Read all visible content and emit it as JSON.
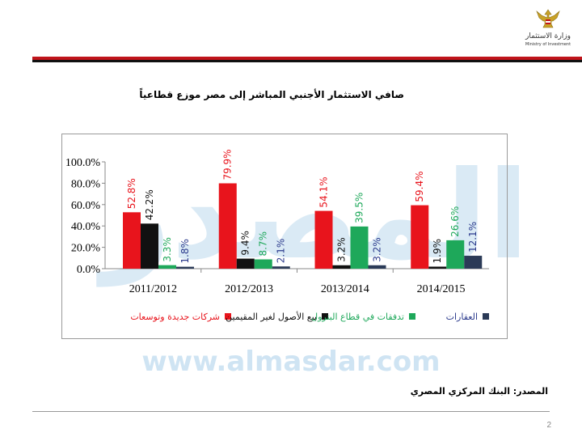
{
  "header": {
    "ministry_name_ar": "وزارة الاستثمار",
    "ministry_name_en": "Ministry of Investment"
  },
  "slide": {
    "title": "صافي الاستثمار الأجنبي المباشر إلى مصر موزع قطاعياً",
    "source": "المصدر: البنك المركزي المصري",
    "page_number": "2"
  },
  "watermark": {
    "logo_text": "المصدر",
    "url_text": "www.almasdar.com"
  },
  "colors": {
    "red": "#e8141c",
    "black": "#111111",
    "green": "#1ea85a",
    "navy": "#2b3a57",
    "band_red": "#c0141b",
    "watermark": "#bcd9ee"
  },
  "chart_data": {
    "type": "bar",
    "categories": [
      "2011/2012",
      "2012/2013",
      "2013/2014",
      "2014/2015"
    ],
    "series": [
      {
        "name": "شركات جديدة وتوسعات",
        "color": "#e8141c",
        "label_color": "#e8141c",
        "values": [
          52.8,
          79.9,
          54.1,
          59.4
        ],
        "labels": [
          "52.8%",
          "79.9%",
          "54.1%",
          "59.4%"
        ]
      },
      {
        "name": "بيع الأصول لغير المقيمين",
        "color": "#111111",
        "label_color": "#111111",
        "values": [
          42.2,
          9.4,
          3.2,
          1.9
        ],
        "labels": [
          "42.2%",
          "9.4%",
          "3.2%",
          "1.9%"
        ]
      },
      {
        "name": "تدفقات في قطاع البترول",
        "color": "#1ea85a",
        "label_color": "#1ea85a",
        "values": [
          3.3,
          8.7,
          39.5,
          26.6
        ],
        "labels": [
          "3.3%",
          "8.7%",
          "39.5%",
          "26.6%"
        ]
      },
      {
        "name": "العقارات",
        "color": "#2b3a57",
        "label_color": "#2b3a8c",
        "values": [
          1.8,
          2.1,
          3.2,
          12.1
        ],
        "labels": [
          "1.8%",
          "2.1%",
          "3.2%",
          "12.1%"
        ]
      }
    ],
    "y_ticks": [
      "100.0%",
      "80.0%",
      "60.0%",
      "40.0%",
      "20.0%",
      "0.0%"
    ],
    "ylim": [
      0,
      100
    ],
    "legend_position": "bottom",
    "grid": false
  }
}
